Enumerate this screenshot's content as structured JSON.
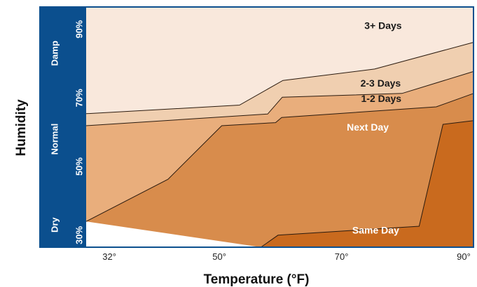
{
  "chart_data": {
    "type": "area",
    "xlabel": "Temperature (°F)",
    "ylabel": "Humidity",
    "xlim": [
      28.2,
      91.6
    ],
    "ylim": [
      26.5,
      96.5
    ],
    "x_ticks": [
      {
        "value": 32,
        "label": "32°"
      },
      {
        "value": 50,
        "label": "50°"
      },
      {
        "value": 70,
        "label": "70°"
      },
      {
        "value": 90,
        "label": "90°"
      }
    ],
    "y_ticks": [
      {
        "value": 30,
        "label": "30%"
      },
      {
        "value": 50,
        "label": "50%"
      },
      {
        "value": 70,
        "label": "70%"
      },
      {
        "value": 90,
        "label": "90%"
      }
    ],
    "humidity_categories": [
      {
        "label": "Dry",
        "value": 33
      },
      {
        "label": "Normal",
        "value": 58
      },
      {
        "label": "Damp",
        "value": 83
      }
    ],
    "boundaries": [
      {
        "name": "same_day_upper",
        "points": [
          [
            56.8,
            26.5
          ],
          [
            59.6,
            30.0
          ],
          [
            82.7,
            32.6
          ],
          [
            86.6,
            62.3
          ],
          [
            91.6,
            63.4
          ]
        ]
      },
      {
        "name": "next_day_upper",
        "points": [
          [
            28.2,
            34.0
          ],
          [
            41.6,
            46.3
          ],
          [
            50.4,
            61.9
          ],
          [
            59.2,
            62.8
          ],
          [
            60.2,
            64.3
          ],
          [
            85.5,
            67.4
          ],
          [
            91.6,
            71.3
          ]
        ]
      },
      {
        "name": "one_two_days_upper",
        "points": [
          [
            28.2,
            61.9
          ],
          [
            57.9,
            65.3
          ],
          [
            60.3,
            70.2
          ],
          [
            79.9,
            71.3
          ],
          [
            91.6,
            77.7
          ]
        ]
      },
      {
        "name": "two_three_days_upper",
        "points": [
          [
            28.2,
            65.4
          ],
          [
            53.3,
            67.9
          ],
          [
            60.4,
            75.1
          ],
          [
            75.4,
            78.4
          ],
          [
            91.6,
            86.2
          ]
        ]
      }
    ],
    "series": [
      {
        "name": "Same Day",
        "color": "#c96a1e",
        "label_at": [
          75.6,
          31.2
        ]
      },
      {
        "name": "Next Day",
        "color": "#d88c4c",
        "label_at": [
          74.3,
          61.2
        ]
      },
      {
        "name": "1-2 Days",
        "color": "#e9ae7c",
        "label_at": [
          76.5,
          69.6
        ]
      },
      {
        "name": "2-3 Days",
        "color": "#f0cfb0",
        "label_at": [
          76.4,
          74.1
        ]
      },
      {
        "name": "3+ Days",
        "color": "#f9e8dc",
        "label_at": [
          76.8,
          90.8
        ]
      }
    ],
    "label_colors": {
      "light": "#ffffff",
      "dark": "#1a1a1a"
    },
    "side_panel_color": "#0b4f8e",
    "grid": false
  }
}
